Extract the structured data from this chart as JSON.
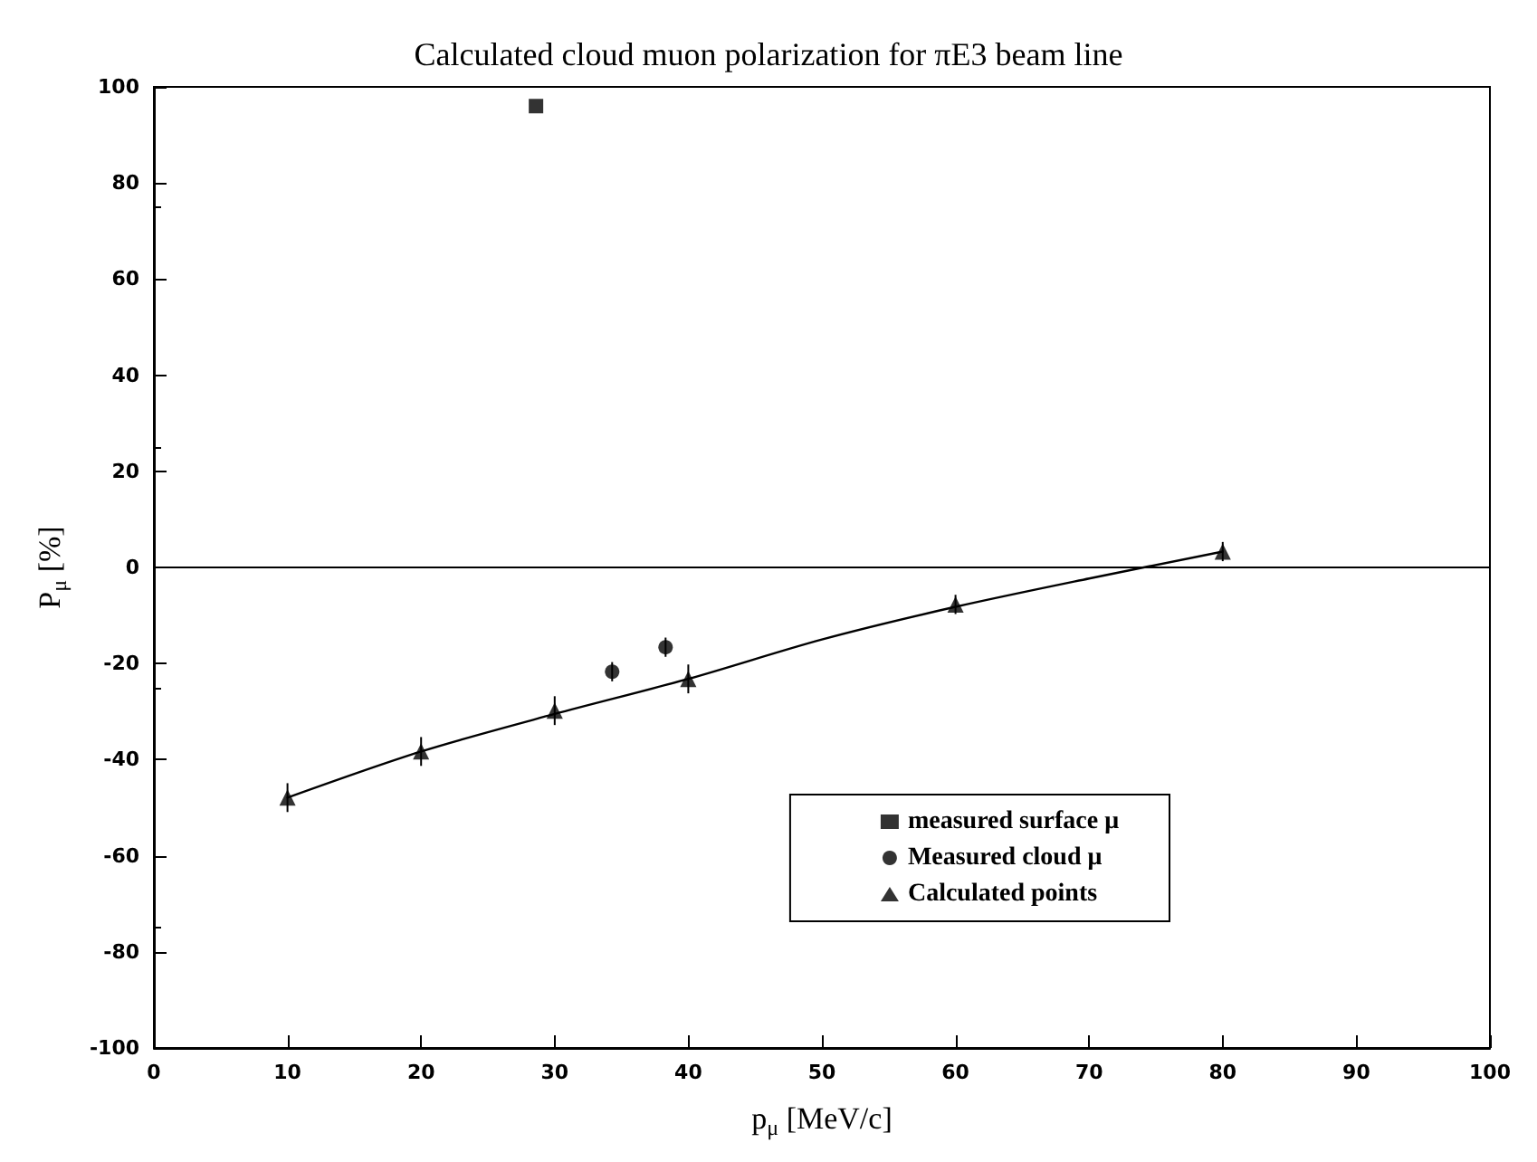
{
  "chart_data": {
    "type": "scatter",
    "title": "Calculated cloud muon polarization for πE3 beam line",
    "xlabel": "p$_{μ}$ [MeV/c]",
    "ylabel": "P$_{μ}$ [%]",
    "xlim": [
      0,
      100
    ],
    "xticks": [
      0,
      10,
      20,
      30,
      40,
      50,
      60,
      70,
      80,
      90,
      100
    ],
    "ylim": [
      -100,
      100
    ],
    "yticks": [
      -100,
      -80,
      -60,
      -40,
      -20,
      0,
      20,
      40,
      60,
      80,
      100
    ],
    "grid": false,
    "legend": "bottom right",
    "ref_lines": [
      {
        "axis": "y",
        "value": 0,
        "color": "#000000"
      }
    ],
    "series": [
      {
        "name": "measured surface μ",
        "marker": "square",
        "color": "#000000",
        "x": [
          28.6
        ],
        "values": [
          96
        ]
      },
      {
        "name": "Measured cloud μ",
        "marker": "circle",
        "color": "#000000",
        "x": [
          34.3,
          38.3
        ],
        "values": [
          -21.7,
          -16.6
        ],
        "errors": [
          2,
          2
        ]
      },
      {
        "name": "Calculated points",
        "marker": "triangle",
        "color": "#000000",
        "x": [
          10,
          20,
          30,
          40,
          60,
          80
        ],
        "values": [
          -47.9,
          -38.3,
          -29.8,
          -23.2,
          -7.7,
          3.3
        ],
        "errors": [
          3,
          3,
          3,
          3,
          2,
          2
        ]
      },
      {
        "type": "line",
        "marker": "none",
        "line_style": "solid",
        "color": "#000000",
        "x": [
          10,
          20,
          30,
          40,
          50,
          60,
          70,
          80
        ],
        "values": [
          -47.9,
          -38.3,
          -30.5,
          -23.2,
          -15,
          -8.2,
          -2.3,
          3.3
        ]
      }
    ]
  }
}
